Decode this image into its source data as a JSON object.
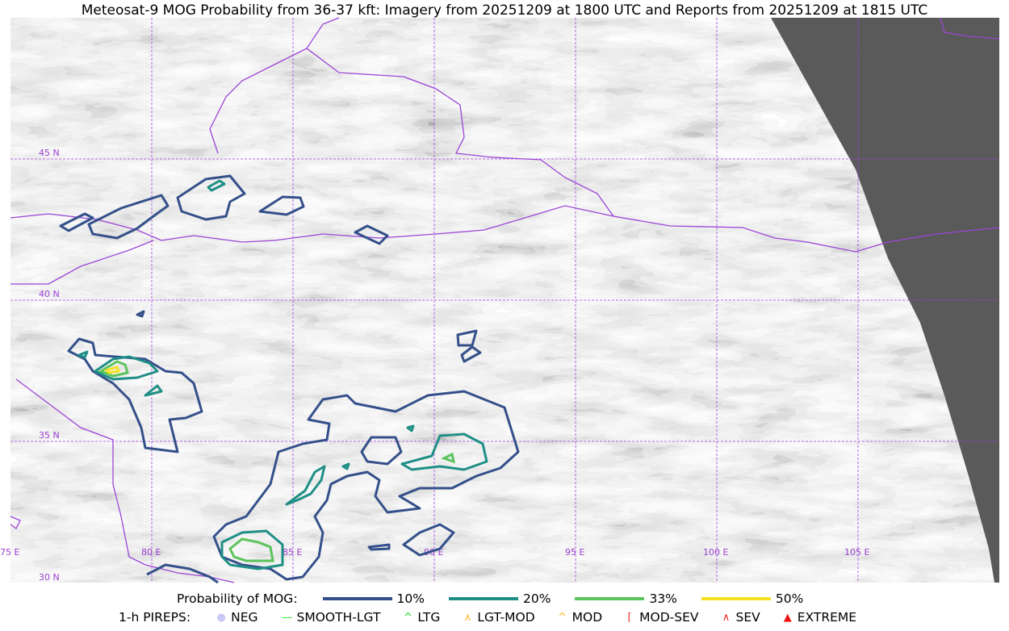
{
  "title": "Meteosat-9 MOG Probability from 36-37 kft: Imagery from 20251209 at 1800 UTC and Reports from 20251209 at 1815 UTC",
  "map": {
    "lon_labels": [
      "75 E",
      "80 E",
      "85 E",
      "90 E",
      "95 E",
      "100 E",
      "105 E"
    ],
    "lat_labels": [
      "45 N",
      "40 N",
      "35 N",
      "30 N"
    ],
    "grid_color": "#a040e0",
    "border_color": "#9b45d6",
    "no_data_color": "#5a5a5a"
  },
  "legend": {
    "probability_label": "Probability of MOG:",
    "levels": [
      {
        "label": "10%",
        "color": "#34508a"
      },
      {
        "label": "20%",
        "color": "#1f8f86"
      },
      {
        "label": "33%",
        "color": "#5cc45c"
      },
      {
        "label": "50%",
        "color": "#f5e01e"
      }
    ],
    "pireps_label": "1-h PIREPS:",
    "pireps": [
      {
        "label": "NEG",
        "icon": "neg-circle-icon",
        "color": "#c8c8f5"
      },
      {
        "label": "SMOOTH-LGT",
        "icon": "line-icon",
        "color": "#22ee22"
      },
      {
        "label": "LTG",
        "icon": "caret-icon",
        "color": "#11dd11"
      },
      {
        "label": "LGT-MOD",
        "icon": "caret-bar-icon",
        "color": "#ffb020"
      },
      {
        "label": "MOD",
        "icon": "caret-icon",
        "color": "#ffb020"
      },
      {
        "label": "MOD-SEV",
        "icon": "double-caret-bar-icon",
        "color": "#ee2020"
      },
      {
        "label": "SEV",
        "icon": "double-caret-icon",
        "color": "#ee2020"
      },
      {
        "label": "EXTREME",
        "icon": "filled-triangle-icon",
        "color": "#ee1010"
      }
    ]
  }
}
